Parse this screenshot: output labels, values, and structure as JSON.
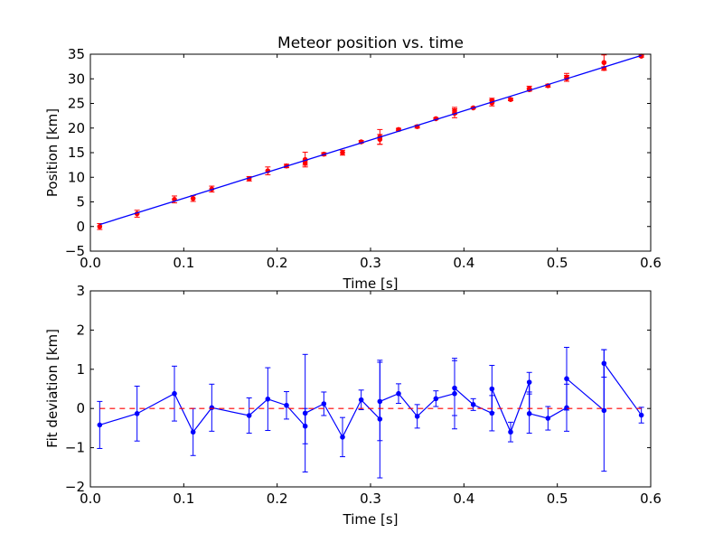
{
  "chart_data": [
    {
      "type": "scatter",
      "title": "Meteor position vs. time",
      "xlabel": "Time [s]",
      "ylabel": "Position [km]",
      "xlim": [
        0.0,
        0.6
      ],
      "ylim": [
        -5,
        35
      ],
      "xticks": [
        "0.0",
        "0.1",
        "0.2",
        "0.3",
        "0.4",
        "0.5",
        "0.6"
      ],
      "yticks": [
        "−5",
        "0",
        "5",
        "10",
        "15",
        "20",
        "25",
        "30",
        "35"
      ],
      "grid": false,
      "colors": {
        "data": "#ff0000",
        "fit": "#0000ff"
      },
      "series": [
        {
          "kind": "errorbar-points",
          "x": [
            0.01,
            0.05,
            0.09,
            0.11,
            0.13,
            0.17,
            0.19,
            0.21,
            0.23,
            0.23,
            0.25,
            0.27,
            0.29,
            0.31,
            0.31,
            0.33,
            0.35,
            0.37,
            0.39,
            0.39,
            0.41,
            0.43,
            0.43,
            0.45,
            0.47,
            0.47,
            0.49,
            0.51,
            0.51,
            0.55,
            0.55,
            0.59
          ],
          "y": [
            0.0,
            2.6,
            5.5,
            5.7,
            7.6,
            9.7,
            11.3,
            12.3,
            12.9,
            13.6,
            14.7,
            15.0,
            17.2,
            18.2,
            17.7,
            19.7,
            20.3,
            21.9,
            23.0,
            23.5,
            24.1,
            25.6,
            25.1,
            25.8,
            27.8,
            28.0,
            28.6,
            30.1,
            30.3,
            33.3,
            32.1,
            34.6
          ],
          "yerr": [
            0.6,
            0.7,
            0.7,
            0.6,
            0.6,
            0.45,
            0.8,
            0.35,
            0.45,
            1.5,
            0.3,
            0.5,
            0.25,
            1.5,
            1.0,
            0.25,
            0.3,
            0.2,
            0.9,
            0.7,
            0.15,
            0.45,
            0.6,
            0.25,
            0.25,
            0.5,
            0.3,
            0.6,
            0.8,
            1.55,
            0.35,
            0.2
          ]
        },
        {
          "kind": "line",
          "x": [
            0.01,
            0.59
          ],
          "y": [
            0.4,
            34.75
          ]
        }
      ]
    },
    {
      "type": "line",
      "title": "",
      "xlabel": "Time [s]",
      "ylabel": "Fit deviation [km]",
      "xlim": [
        0.0,
        0.6
      ],
      "ylim": [
        -2,
        3
      ],
      "xticks": [
        "0.0",
        "0.1",
        "0.2",
        "0.3",
        "0.4",
        "0.5",
        "0.6"
      ],
      "yticks": [
        "−2",
        "−1",
        "0",
        "1",
        "2",
        "3"
      ],
      "grid": false,
      "colors": {
        "line": "#0000ff",
        "reference": "#ff0000"
      },
      "series": [
        {
          "kind": "errorbar-line",
          "x": [
            0.01,
            0.05,
            0.09,
            0.11,
            0.13,
            0.17,
            0.19,
            0.21,
            0.23,
            0.23,
            0.25,
            0.27,
            0.29,
            0.31,
            0.31,
            0.33,
            0.35,
            0.37,
            0.39,
            0.39,
            0.41,
            0.43,
            0.43,
            0.45,
            0.47,
            0.47,
            0.49,
            0.51,
            0.51,
            0.55,
            0.55,
            0.59
          ],
          "y": [
            -0.42,
            -0.13,
            0.38,
            -0.6,
            0.02,
            -0.18,
            0.24,
            0.08,
            -0.45,
            -0.12,
            0.12,
            -0.73,
            0.22,
            -0.27,
            0.18,
            0.38,
            -0.2,
            0.25,
            0.38,
            0.52,
            0.1,
            -0.12,
            0.5,
            -0.6,
            0.67,
            -0.13,
            -0.25,
            0.02,
            0.76,
            -0.05,
            1.15,
            -0.17
          ],
          "yerr": [
            0.6,
            0.7,
            0.7,
            0.6,
            0.6,
            0.45,
            0.8,
            0.35,
            0.45,
            1.5,
            0.3,
            0.5,
            0.25,
            1.5,
            1.0,
            0.25,
            0.3,
            0.2,
            0.9,
            0.7,
            0.15,
            0.45,
            0.6,
            0.25,
            0.25,
            0.5,
            0.3,
            0.6,
            0.8,
            1.55,
            0.35,
            0.2
          ]
        },
        {
          "kind": "reference",
          "style": "dashed",
          "y": 0
        }
      ]
    }
  ]
}
